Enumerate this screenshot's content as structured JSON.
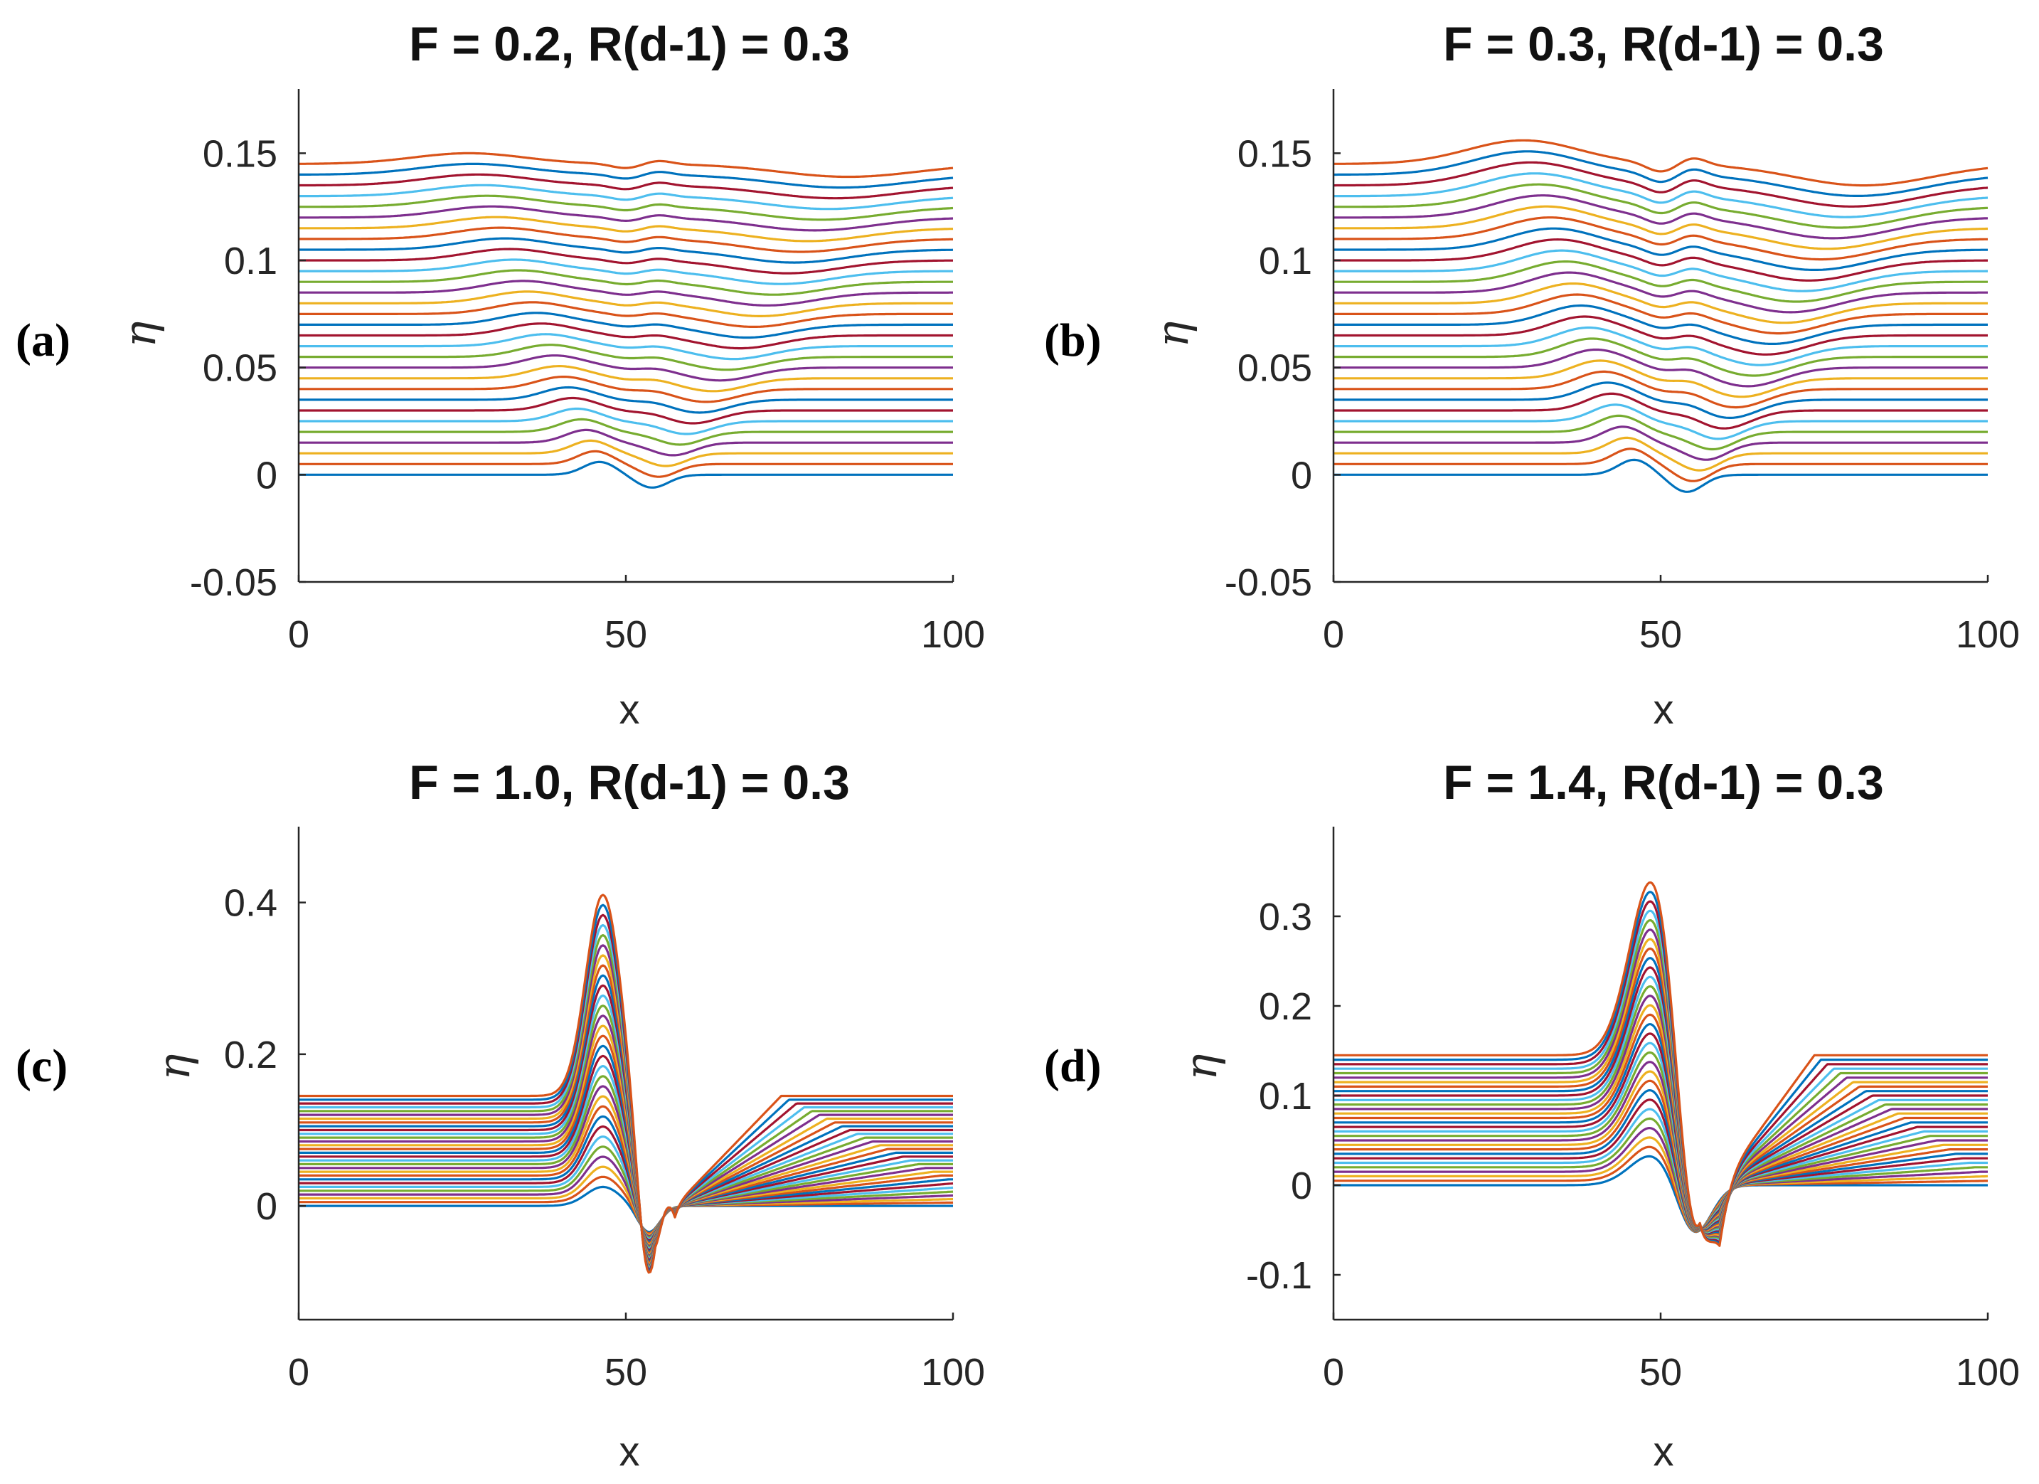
{
  "chart_data": [
    {
      "type": "line",
      "panel_label": "(a)",
      "title": "F = 0.2, R(d-1) = 0.3",
      "xlabel": "x",
      "ylabel": "η",
      "xlim": [
        0,
        100
      ],
      "ylim": [
        -0.05,
        0.18
      ],
      "xticks": [
        "0",
        "50",
        "100"
      ],
      "yticks": [
        "-0.05",
        "0",
        "0.05",
        "0.1",
        "0.15"
      ],
      "n_curves": 30,
      "baseline_step": 0.005,
      "curve_model": {
        "F": 0.2,
        "bump_amp": [
          0.006,
          0.005
        ],
        "dip_amp": [
          0.006,
          0.006
        ],
        "notch": 0.002,
        "wake_drop": 0.0,
        "wake_len": 0,
        "bump_drift": -20,
        "dip_drift": 30
      }
    },
    {
      "type": "line",
      "panel_label": "(b)",
      "title": "F = 0.3, R(d-1) = 0.3",
      "xlabel": "x",
      "ylabel": "η",
      "xlim": [
        0,
        100
      ],
      "ylim": [
        -0.05,
        0.18
      ],
      "xticks": [
        "0",
        "50",
        "100"
      ],
      "yticks": [
        "-0.05",
        "0",
        "0.05",
        "0.1",
        "0.15"
      ],
      "n_curves": 30,
      "baseline_step": 0.005,
      "curve_model": {
        "F": 0.3,
        "bump_amp": [
          0.007,
          0.011
        ],
        "dip_amp": [
          0.008,
          0.01
        ],
        "notch": 0.004,
        "wake_drop": 0.0,
        "wake_len": 0,
        "bump_drift": -17,
        "dip_drift": 27
      }
    },
    {
      "type": "line",
      "panel_label": "(c)",
      "title": "F = 1.0, R(d-1) = 0.3",
      "xlabel": "x",
      "ylabel": "η",
      "xlim": [
        0,
        100
      ],
      "ylim": [
        -0.15,
        0.5
      ],
      "xticks": [
        "0",
        "50",
        "100"
      ],
      "yticks": [
        "0",
        "0.2",
        "0.4"
      ],
      "n_curves": 30,
      "baseline_step": 0.005,
      "curve_model": {
        "F": 1.0,
        "bump_amp": [
          0.025,
          0.265
        ],
        "dip_amp": [
          0.035,
          0.24
        ],
        "notch": 0.0,
        "wake_drop": 0.145,
        "wake_len": 45,
        "bump_drift": 0,
        "dip_drift": 0
      }
    },
    {
      "type": "line",
      "panel_label": "(d)",
      "title": "F = 1.4, R(d-1) = 0.3",
      "xlabel": "x",
      "ylabel": "η",
      "xlim": [
        0,
        100
      ],
      "ylim": [
        -0.15,
        0.4
      ],
      "xticks": [
        "0",
        "50",
        "100"
      ],
      "yticks": [
        "-0.1",
        "0",
        "0.1",
        "0.2",
        "0.3"
      ],
      "n_curves": 30,
      "baseline_step": 0.005,
      "curve_model": {
        "F": 1.4,
        "bump_amp": [
          0.035,
          0.205
        ],
        "dip_amp": [
          0.06,
          0.235
        ],
        "notch": 0.0,
        "wake_drop": 0.14,
        "wake_len": 38,
        "bump_drift": 0,
        "dip_drift": 0
      }
    }
  ],
  "series_colors": [
    "#0072BD",
    "#D95319",
    "#EDB120",
    "#7E2F8E",
    "#77AC30",
    "#4DBEEE",
    "#A2142F"
  ]
}
